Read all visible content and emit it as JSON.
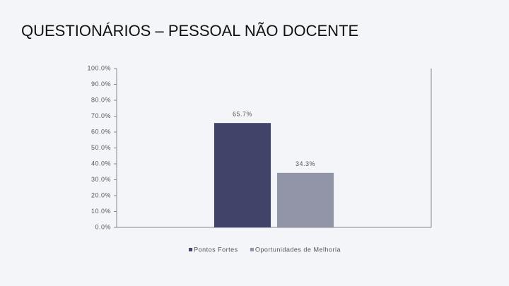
{
  "chart_data": {
    "type": "bar",
    "title": "QUESTIONÁRIOS – PESSOAL NÃO DOCENTE",
    "categories": [
      null
    ],
    "series": [
      {
        "name": "Pontos Fortes",
        "color": "#404468",
        "values": [
          65.7
        ],
        "value_labels": [
          "65.7%"
        ]
      },
      {
        "name": "Oportunidades de Melhoria",
        "color": "#9294a8",
        "values": [
          34.3
        ],
        "value_labels": [
          "34.3%"
        ]
      }
    ],
    "ylim": [
      0,
      100
    ],
    "yticks": [
      {
        "value": 0,
        "label": "0.0%"
      },
      {
        "value": 10,
        "label": "10.0%"
      },
      {
        "value": 20,
        "label": "20.0%"
      },
      {
        "value": 30,
        "label": "30.0%"
      },
      {
        "value": 40,
        "label": "40.0%"
      },
      {
        "value": 50,
        "label": "50.0%"
      },
      {
        "value": 60,
        "label": "60.0%"
      },
      {
        "value": 70,
        "label": "70.0%"
      },
      {
        "value": 80,
        "label": "80.0%"
      },
      {
        "value": 90,
        "label": "90.0%"
      },
      {
        "value": 100,
        "label": "100.0%"
      }
    ],
    "grid": false,
    "legend": "bottom"
  }
}
